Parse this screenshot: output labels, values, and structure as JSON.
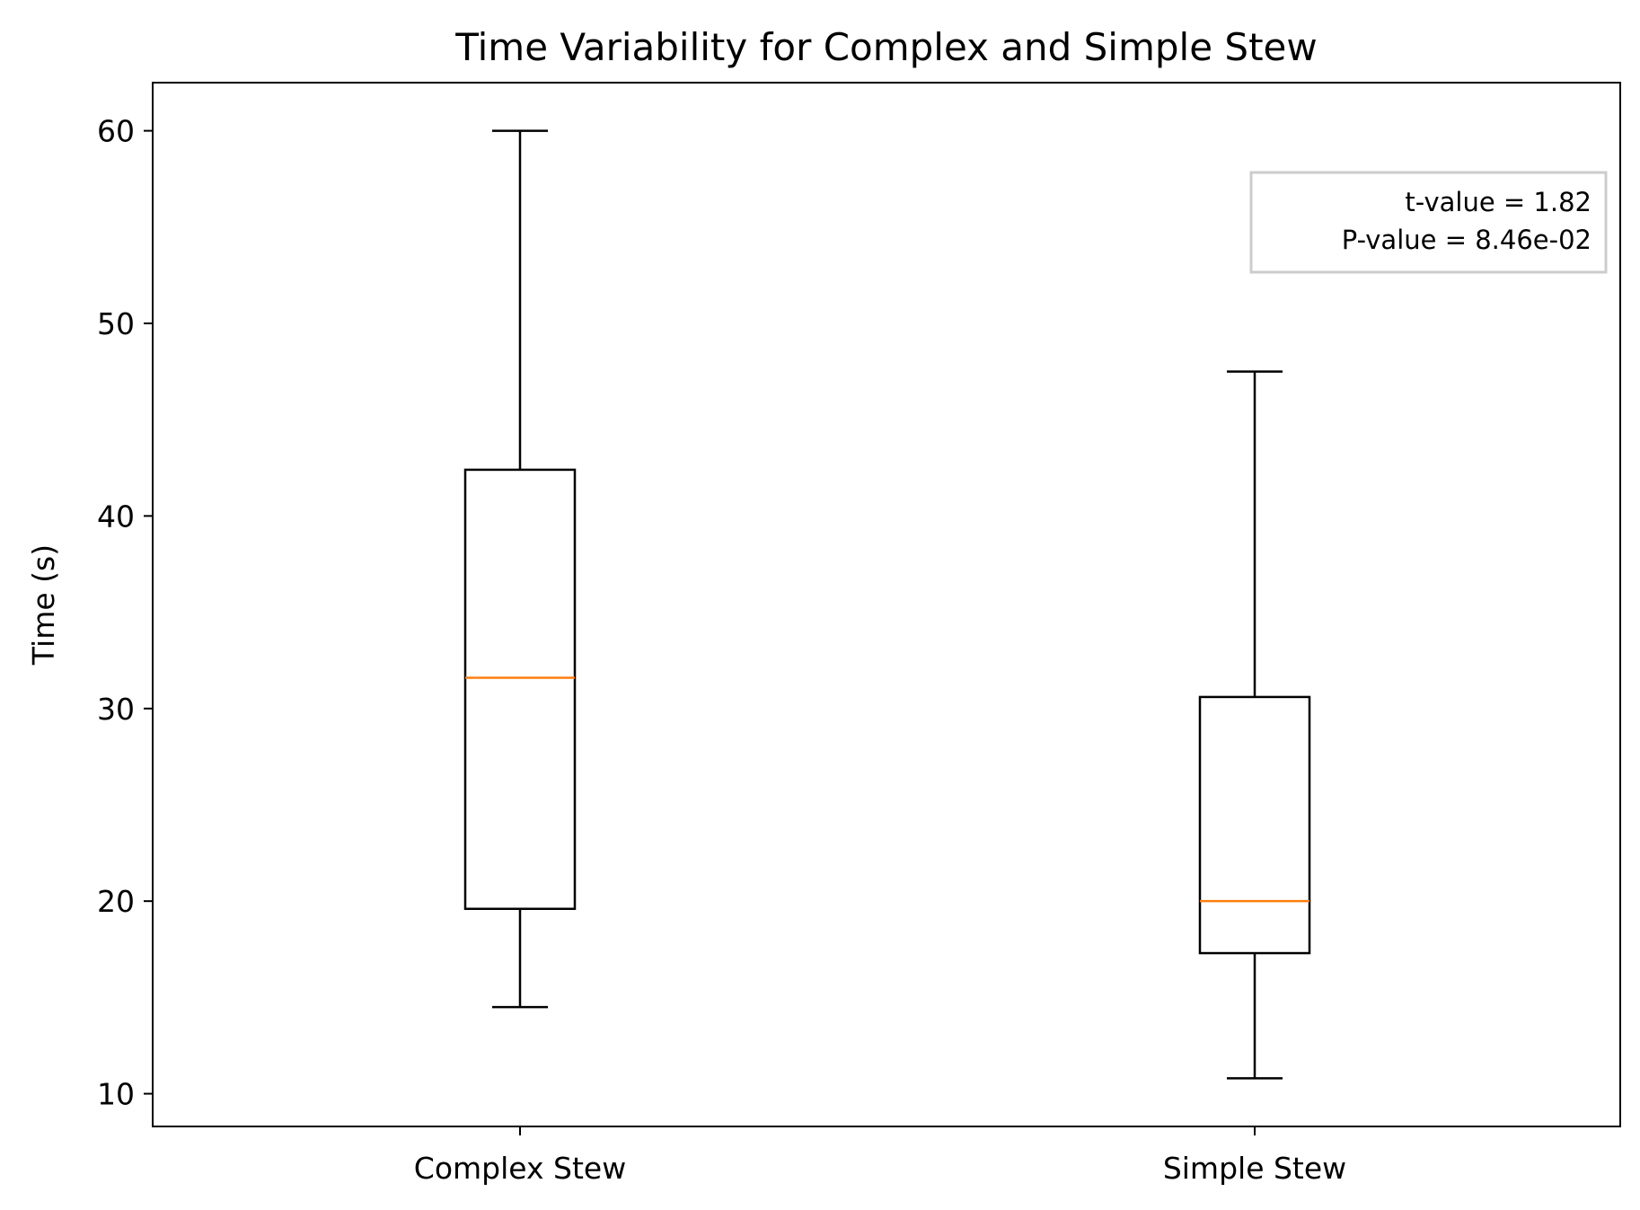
{
  "chart_data": {
    "type": "box",
    "title": "Time Variability for Complex and Simple Stew",
    "xlabel": "",
    "ylabel": "Time (s)",
    "ylim": [
      8.3,
      62.5
    ],
    "yticks": [
      10,
      20,
      30,
      40,
      50,
      60
    ],
    "grid": false,
    "categories": [
      "Complex Stew",
      "Simple Stew"
    ],
    "boxes": [
      {
        "whisker_low": 14.5,
        "q1": 19.6,
        "median": 31.6,
        "q3": 42.4,
        "whisker_high": 60.0
      },
      {
        "whisker_low": 10.8,
        "q1": 17.3,
        "median": 20.0,
        "q3": 30.6,
        "whisker_high": 47.5
      }
    ],
    "annotation": {
      "placement": "top-right",
      "lines": [
        "t-value = 1.82",
        "P-value = 8.46e-02"
      ]
    },
    "colors": {
      "box": "#000000",
      "median": "#ff7f0e",
      "annotation_border": "#cccccc"
    }
  }
}
